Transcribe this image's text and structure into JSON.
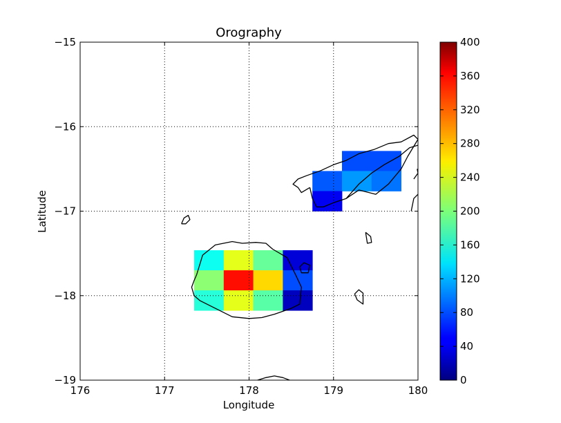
{
  "chart_data": {
    "type": "heatmap",
    "title": "Orography",
    "xlabel": "Longitude",
    "ylabel": "Latitude",
    "xlim": [
      176,
      180
    ],
    "ylim": [
      -19,
      -15
    ],
    "xticks": [
      "176",
      "177",
      "178",
      "179",
      "180"
    ],
    "yticks": [
      "−15",
      "−16",
      "−17",
      "−18",
      "−19"
    ],
    "xtick_values": [
      176,
      177,
      178,
      179,
      180
    ],
    "ytick_values": [
      -15,
      -16,
      -17,
      -18,
      -19
    ],
    "grid": true,
    "colormap": "jet",
    "colorbar": {
      "min": 0,
      "max": 400,
      "ticks": [
        "0",
        "40",
        "80",
        "120",
        "160",
        "200",
        "240",
        "280",
        "320",
        "360",
        "400"
      ],
      "tick_values": [
        0,
        40,
        80,
        120,
        160,
        200,
        240,
        280,
        320,
        360,
        400
      ]
    },
    "cell_size": [
      0.35,
      0.2375
    ],
    "cells": [
      {
        "lon": 177.35,
        "lat": -17.4625,
        "value": 155
      },
      {
        "lon": 177.7,
        "lat": -17.4625,
        "value": 240
      },
      {
        "lon": 178.05,
        "lat": -17.4625,
        "value": 190
      },
      {
        "lon": 178.4,
        "lat": -17.4625,
        "value": 35
      },
      {
        "lon": 177.35,
        "lat": -17.7,
        "value": 205
      },
      {
        "lon": 177.7,
        "lat": -17.7,
        "value": 345
      },
      {
        "lon": 178.05,
        "lat": -17.7,
        "value": 265
      },
      {
        "lon": 178.4,
        "lat": -17.7,
        "value": 80
      },
      {
        "lon": 177.35,
        "lat": -17.9375,
        "value": 165
      },
      {
        "lon": 177.7,
        "lat": -17.9375,
        "value": 240
      },
      {
        "lon": 178.05,
        "lat": -17.9375,
        "value": 185
      },
      {
        "lon": 178.4,
        "lat": -17.9375,
        "value": 25
      },
      {
        "lon": 179.1,
        "lat": -16.2875,
        "value": 80
      },
      {
        "lon": 179.45,
        "lat": -16.2875,
        "value": 80
      },
      {
        "lon": 178.75,
        "lat": -16.525,
        "value": 85
      },
      {
        "lon": 179.1,
        "lat": -16.525,
        "value": 110
      },
      {
        "lon": 179.45,
        "lat": -16.525,
        "value": 95
      },
      {
        "lon": 178.75,
        "lat": -16.7625,
        "value": 45
      }
    ],
    "coastlines": [
      [
        [
          177.35,
          -17.82
        ],
        [
          177.32,
          -17.9
        ],
        [
          177.35,
          -18.0
        ],
        [
          177.42,
          -18.06
        ],
        [
          177.6,
          -18.15
        ],
        [
          177.8,
          -18.25
        ],
        [
          178.0,
          -18.27
        ],
        [
          178.15,
          -18.26
        ],
        [
          178.3,
          -18.22
        ],
        [
          178.5,
          -18.15
        ],
        [
          178.6,
          -18.1
        ],
        [
          178.62,
          -17.9
        ],
        [
          178.55,
          -17.75
        ],
        [
          178.45,
          -17.55
        ],
        [
          178.28,
          -17.45
        ],
        [
          178.2,
          -17.38
        ],
        [
          178.08,
          -17.37
        ],
        [
          177.92,
          -17.38
        ],
        [
          177.8,
          -17.36
        ],
        [
          177.6,
          -17.4
        ],
        [
          177.45,
          -17.52
        ],
        [
          177.42,
          -17.62
        ],
        [
          177.38,
          -17.75
        ],
        [
          177.35,
          -17.82
        ]
      ],
      [
        [
          178.72,
          -16.72
        ],
        [
          178.62,
          -16.78
        ],
        [
          178.58,
          -16.72
        ],
        [
          178.52,
          -16.68
        ],
        [
          178.58,
          -16.62
        ],
        [
          178.68,
          -16.58
        ],
        [
          178.85,
          -16.52
        ],
        [
          179.0,
          -16.45
        ],
        [
          179.15,
          -16.4
        ],
        [
          179.3,
          -16.32
        ],
        [
          179.48,
          -16.27
        ],
        [
          179.65,
          -16.2
        ],
        [
          179.8,
          -16.18
        ],
        [
          179.95,
          -16.1
        ],
        [
          180.0,
          -16.15
        ],
        [
          179.88,
          -16.35
        ],
        [
          179.8,
          -16.5
        ],
        [
          179.65,
          -16.68
        ],
        [
          179.5,
          -16.8
        ],
        [
          179.3,
          -16.75
        ],
        [
          179.15,
          -16.85
        ],
        [
          179.0,
          -16.9
        ],
        [
          178.88,
          -16.95
        ],
        [
          178.8,
          -16.95
        ],
        [
          178.75,
          -16.85
        ],
        [
          178.72,
          -16.72
        ]
      ],
      [
        [
          179.15,
          -16.85
        ],
        [
          179.3,
          -16.68
        ],
        [
          179.45,
          -16.55
        ],
        [
          179.6,
          -16.45
        ],
        [
          179.78,
          -16.35
        ],
        [
          179.9,
          -16.25
        ],
        [
          180.0,
          -16.22
        ]
      ],
      [
        [
          177.2,
          -17.15
        ],
        [
          177.23,
          -17.08
        ],
        [
          177.28,
          -17.05
        ],
        [
          177.3,
          -17.1
        ],
        [
          177.25,
          -17.15
        ],
        [
          177.2,
          -17.15
        ]
      ],
      [
        [
          179.38,
          -17.25
        ],
        [
          179.4,
          -17.38
        ],
        [
          179.45,
          -17.37
        ],
        [
          179.44,
          -17.3
        ],
        [
          179.38,
          -17.25
        ]
      ],
      [
        [
          179.25,
          -17.98
        ],
        [
          179.3,
          -17.93
        ],
        [
          179.35,
          -17.97
        ],
        [
          179.35,
          -18.1
        ],
        [
          179.28,
          -18.05
        ],
        [
          179.25,
          -17.98
        ]
      ],
      [
        [
          178.6,
          -17.66
        ],
        [
          178.65,
          -17.61
        ],
        [
          178.72,
          -17.64
        ],
        [
          178.7,
          -17.73
        ],
        [
          178.62,
          -17.73
        ],
        [
          178.6,
          -17.66
        ]
      ],
      [
        [
          179.92,
          -17.0
        ],
        [
          179.95,
          -16.85
        ],
        [
          180.0,
          -16.8
        ]
      ],
      [
        [
          179.95,
          -16.62
        ],
        [
          180.0,
          -16.55
        ],
        [
          179.99,
          -16.5
        ]
      ],
      [
        [
          178.1,
          -19.0
        ],
        [
          178.2,
          -18.97
        ],
        [
          178.3,
          -18.95
        ],
        [
          178.4,
          -18.97
        ],
        [
          178.48,
          -19.0
        ]
      ]
    ]
  }
}
